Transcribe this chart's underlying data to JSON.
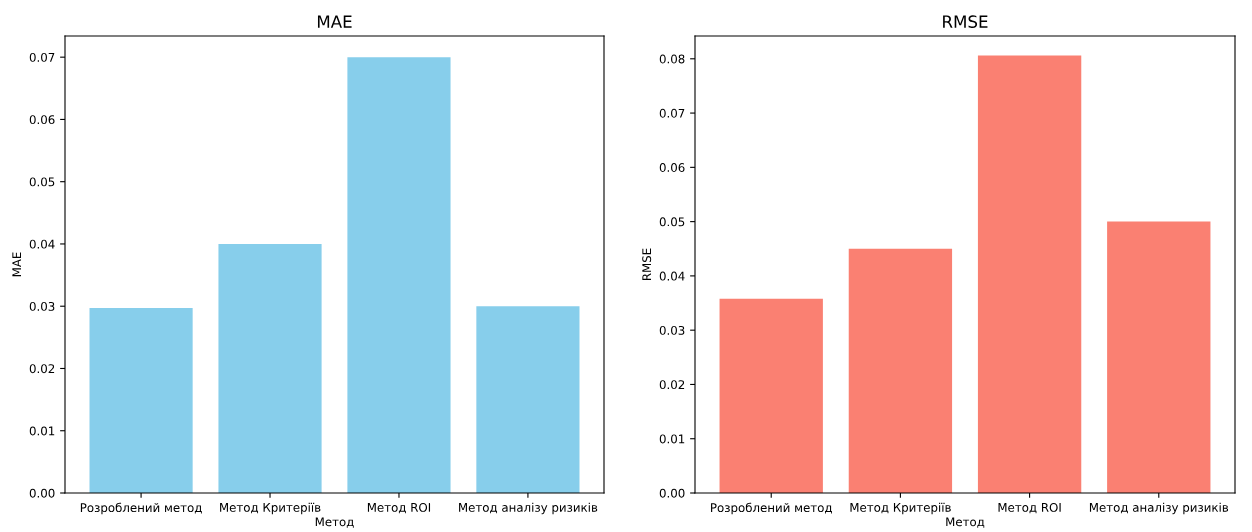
{
  "chart_data": [
    {
      "type": "bar",
      "title": "MAE",
      "xlabel": "Метод",
      "ylabel": "MAE",
      "categories": [
        "Розроблений метод",
        "Метод Критеріїв",
        "Метод ROI",
        "Метод аналізу ризиків"
      ],
      "values": [
        0.0297,
        0.04,
        0.07,
        0.03
      ],
      "color": "#87ceeb",
      "ylim": [
        0,
        0.0734
      ],
      "yticks": [
        {
          "value": 0,
          "label": "0.00"
        },
        {
          "value": 0.01,
          "label": "0.01"
        },
        {
          "value": 0.02,
          "label": "0.02"
        },
        {
          "value": 0.03,
          "label": "0.03"
        },
        {
          "value": 0.04,
          "label": "0.04"
        },
        {
          "value": 0.05,
          "label": "0.05"
        },
        {
          "value": 0.06,
          "label": "0.06"
        },
        {
          "value": 0.07,
          "label": "0.07"
        }
      ]
    },
    {
      "type": "bar",
      "title": "RMSE",
      "xlabel": "Метод",
      "ylabel": "RMSE",
      "categories": [
        "Розроблений метод",
        "Метод Критеріїв",
        "Метод ROI",
        "Метод аналізу ризиків"
      ],
      "values": [
        0.0358,
        0.045,
        0.0806,
        0.05
      ],
      "color": "#fa8072",
      "ylim": [
        0,
        0.0842
      ],
      "yticks": [
        {
          "value": 0,
          "label": "0.00"
        },
        {
          "value": 0.01,
          "label": "0.01"
        },
        {
          "value": 0.02,
          "label": "0.02"
        },
        {
          "value": 0.03,
          "label": "0.03"
        },
        {
          "value": 0.04,
          "label": "0.04"
        },
        {
          "value": 0.05,
          "label": "0.05"
        },
        {
          "value": 0.06,
          "label": "0.06"
        },
        {
          "value": 0.07,
          "label": "0.07"
        },
        {
          "value": 0.08,
          "label": "0.08"
        }
      ]
    }
  ]
}
